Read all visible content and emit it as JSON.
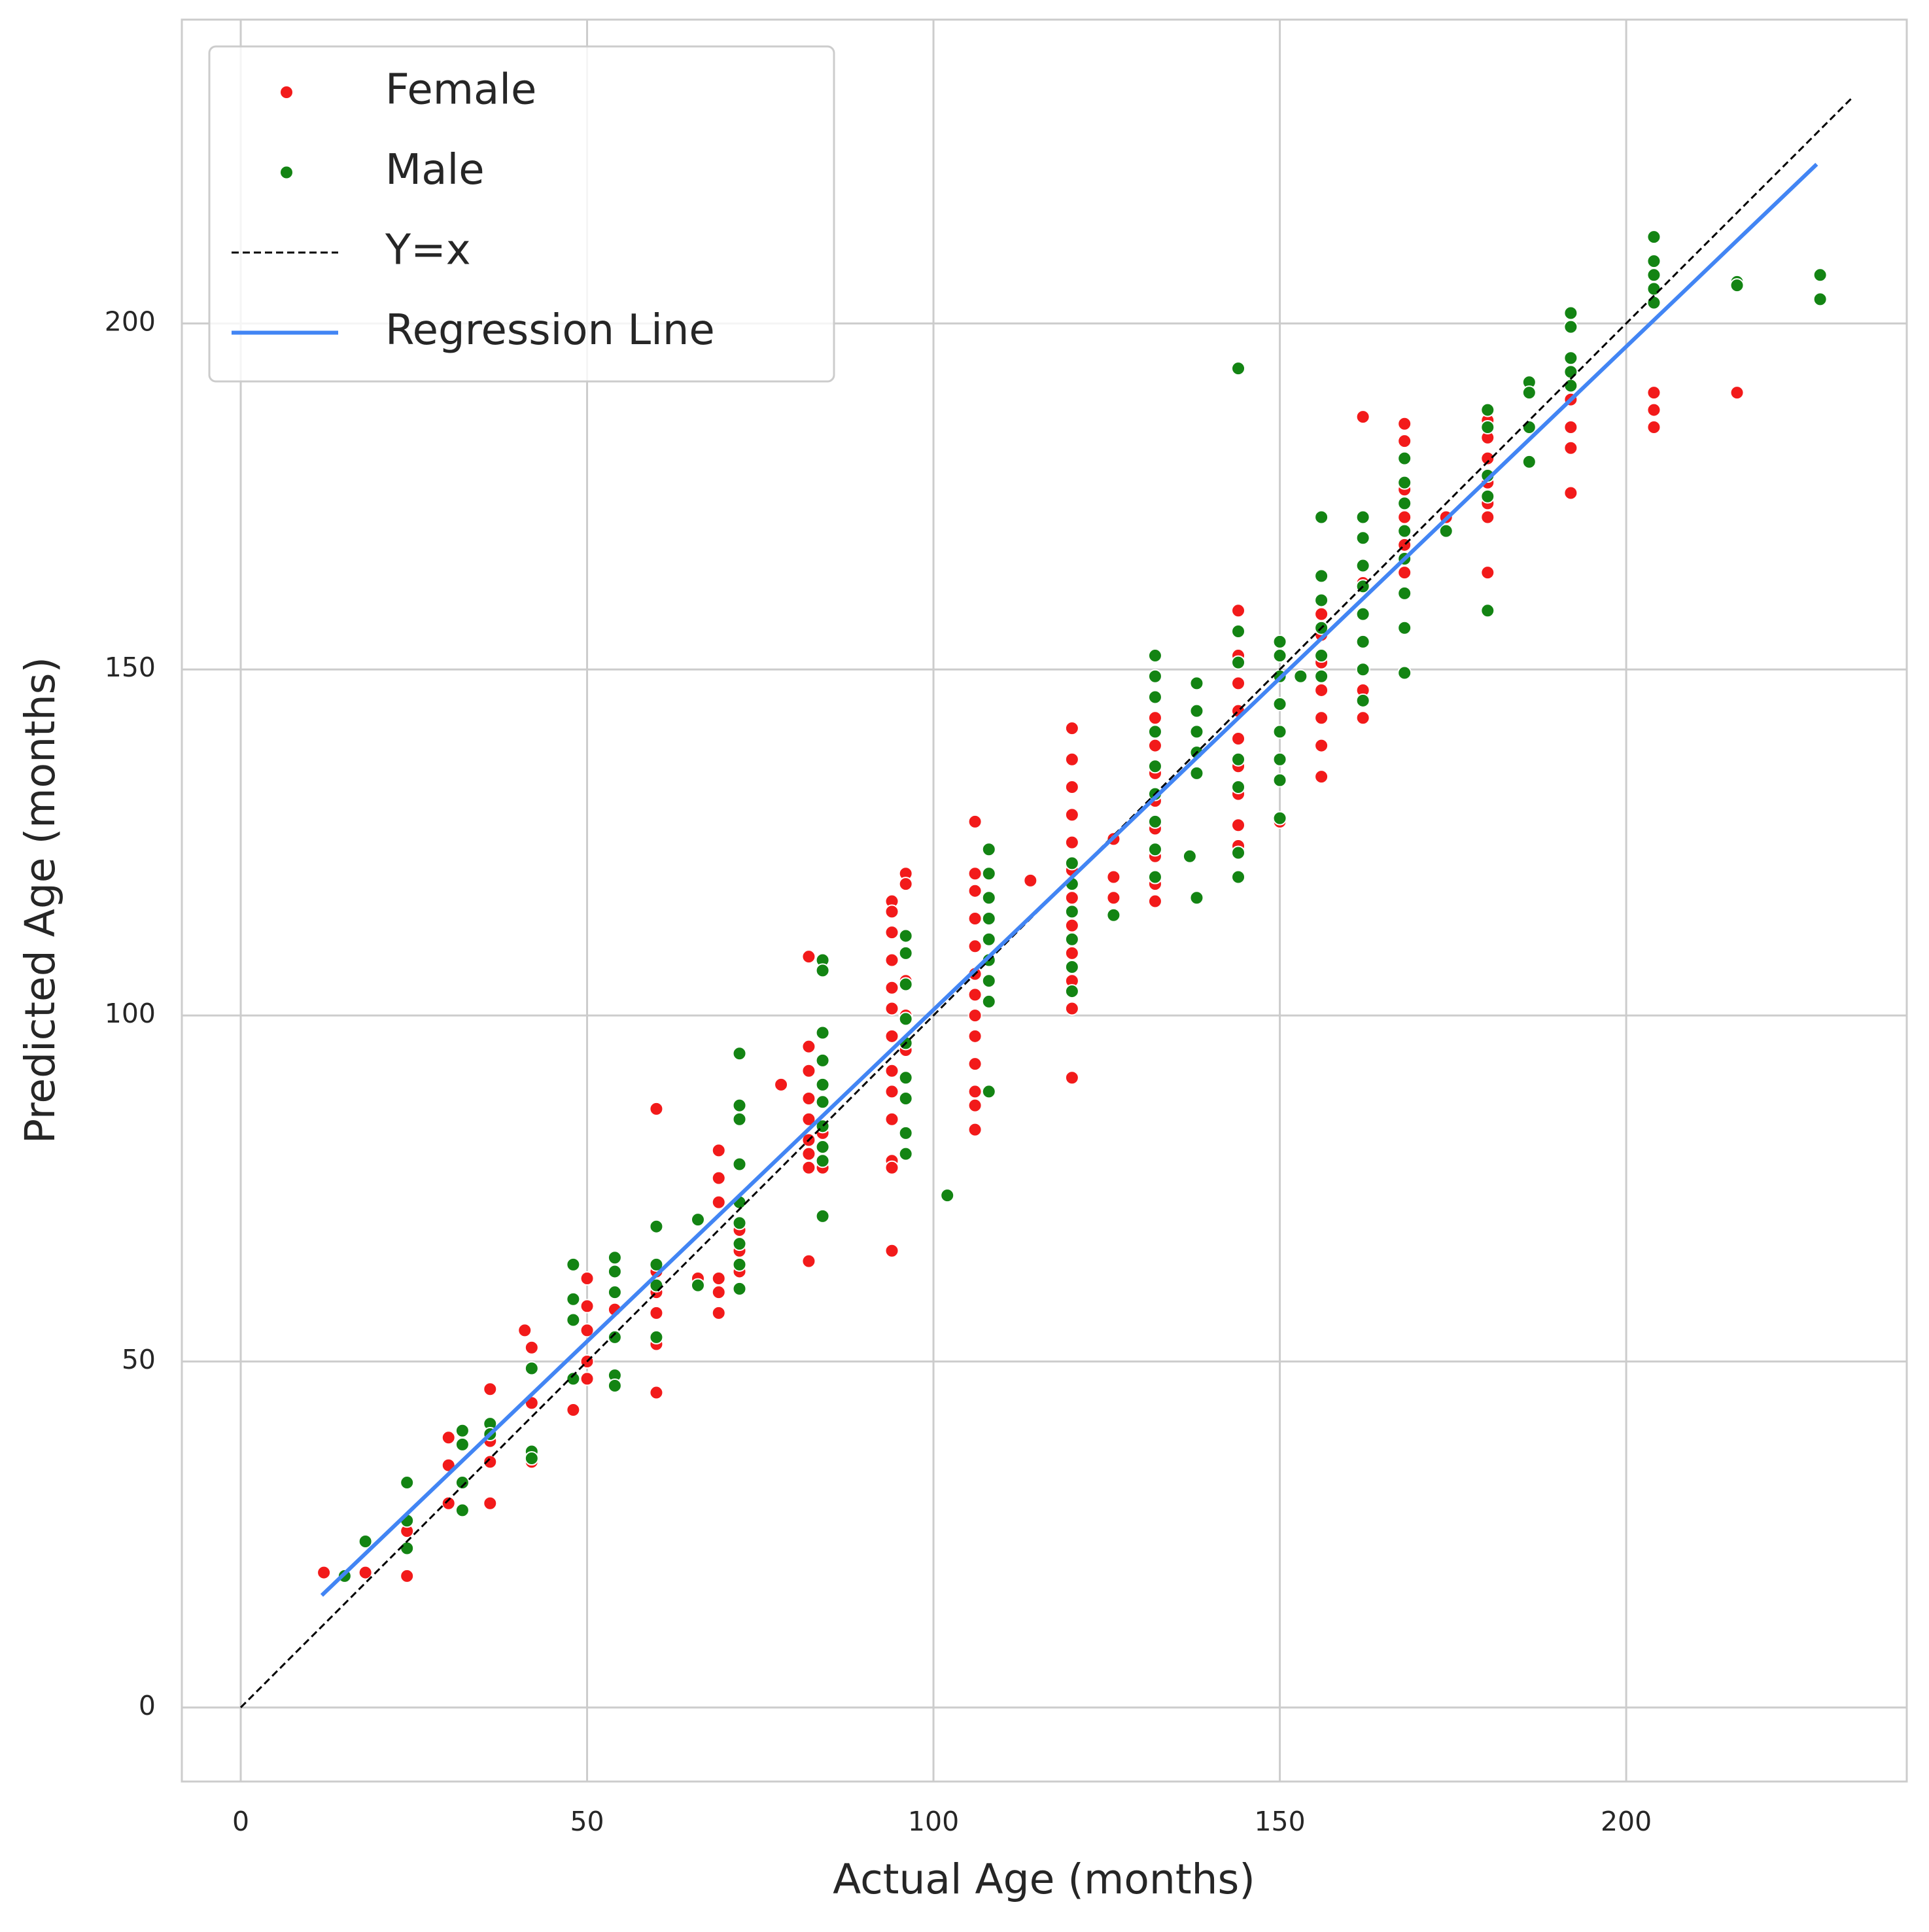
{
  "chart_data": {
    "type": "scatter",
    "xlabel": "Actual Age (months)",
    "ylabel": "Predicted Age (months)",
    "xlim": [
      -8.5,
      240.5
    ],
    "ylim": [
      -10.7,
      243.9
    ],
    "xticks": [
      0,
      50,
      100,
      150,
      200
    ],
    "yticks": [
      0,
      50,
      100,
      150,
      200
    ],
    "grid": true,
    "legend": "upper left",
    "series": [
      {
        "name": "Female",
        "color": "#f21a1a",
        "mode": "markers",
        "x": [
          12,
          18,
          24,
          24,
          30,
          30,
          30,
          36,
          36,
          36,
          36,
          41,
          42,
          42,
          42,
          48,
          50,
          50,
          50,
          50,
          50,
          54,
          60,
          60,
          60,
          60,
          60,
          60,
          66,
          69,
          69,
          69,
          69,
          69,
          69,
          72,
          72,
          72,
          72,
          78,
          82,
          82,
          82,
          82,
          82,
          82,
          82,
          82,
          82,
          84,
          84,
          94,
          94,
          94,
          94,
          94,
          94,
          94,
          94,
          94,
          94,
          94,
          94,
          94,
          96,
          96,
          96,
          96,
          96,
          96,
          106,
          106,
          106,
          106,
          106,
          106,
          106,
          106,
          106,
          106,
          106,
          106,
          106,
          114,
          120,
          120,
          120,
          120,
          120,
          120,
          120,
          120,
          120,
          120,
          120,
          120,
          126,
          126,
          126,
          132,
          132,
          132,
          132,
          132,
          132,
          132,
          132,
          132,
          144,
          144,
          144,
          144,
          144,
          144,
          144,
          144,
          144,
          144,
          150,
          156,
          156,
          156,
          156,
          156,
          156,
          156,
          162,
          162,
          162,
          162,
          162,
          168,
          168,
          168,
          168,
          168,
          168,
          174,
          180,
          180,
          180,
          180,
          180,
          180,
          180,
          192,
          192,
          192,
          192,
          204,
          204,
          204,
          216
        ],
        "y": [
          19.5,
          19.5,
          19,
          25.5,
          39,
          35,
          29.5,
          46,
          38.5,
          35.5,
          29.5,
          54.5,
          52,
          44,
          35.5,
          43,
          62,
          58,
          54.5,
          50,
          47.5,
          57.5,
          86.5,
          63,
          60,
          57,
          52.5,
          45.5,
          62,
          80.5,
          76.5,
          73,
          62,
          60,
          57,
          73,
          69,
          66,
          63,
          90,
          108.5,
          95.5,
          92,
          88,
          85,
          82,
          80,
          78,
          64.5,
          78,
          83,
          116.5,
          115,
          112,
          108,
          104,
          101,
          97,
          92,
          89,
          85,
          79,
          78,
          66,
          120.5,
          119,
          105,
          100,
          95,
          91,
          128,
          120.5,
          118,
          114,
          110,
          106,
          103,
          100,
          97,
          93,
          89,
          87,
          83.5,
          119.5,
          141.5,
          137,
          133,
          129,
          125,
          121,
          117,
          113,
          109,
          105,
          101,
          91,
          125.5,
          120,
          117,
          146,
          143,
          139,
          135,
          131,
          127,
          123,
          119,
          116.5,
          158.5,
          155.5,
          152,
          148,
          144,
          140,
          136,
          132,
          127.5,
          124.5,
          128,
          158,
          155,
          151,
          147,
          143,
          139,
          134.5,
          186.5,
          162.5,
          158,
          147,
          143,
          185.5,
          183,
          176,
          172,
          168,
          164,
          172,
          186,
          183.5,
          180.5,
          177,
          174,
          172,
          164,
          189,
          185,
          182,
          175.5,
          190,
          187.5,
          185,
          190
        ]
      },
      {
        "name": "Male",
        "color": "#138413",
        "mode": "markers",
        "x": [
          15,
          18,
          24,
          24,
          24,
          32,
          32,
          32,
          32,
          36,
          36,
          42,
          42,
          42,
          48,
          48,
          48,
          48,
          54,
          54,
          54,
          54,
          54,
          54,
          60,
          60,
          60,
          60,
          66,
          66,
          72,
          72,
          72,
          72,
          72,
          72,
          72,
          72,
          72,
          84,
          84,
          84,
          84,
          84,
          84,
          84,
          84,
          84,
          84,
          96,
          96,
          96,
          96,
          96,
          96,
          96,
          96,
          96,
          102,
          108,
          108,
          108,
          108,
          108,
          108,
          108,
          108,
          108,
          120,
          120,
          120,
          120,
          120,
          120,
          126,
          132,
          132,
          132,
          132,
          132,
          132,
          132,
          132,
          132,
          137,
          138,
          138,
          138,
          138,
          138,
          138,
          144,
          144,
          144,
          144,
          144,
          144,
          144,
          150,
          150,
          150,
          150,
          150,
          150,
          150,
          150,
          153,
          156,
          156,
          156,
          156,
          156,
          156,
          162,
          162,
          162,
          162,
          162,
          162,
          162,
          162,
          168,
          168,
          168,
          168,
          168,
          168,
          168,
          168,
          174,
          180,
          180,
          180,
          180,
          180,
          186,
          186,
          186,
          186,
          192,
          192,
          192,
          192,
          192,
          204,
          204,
          204,
          204,
          204,
          216,
          216,
          228,
          228
        ],
        "y": [
          19,
          24,
          32.5,
          27,
          23,
          40,
          38,
          32.5,
          28.5,
          41,
          39.5,
          49,
          37,
          36,
          64,
          59,
          56,
          47.5,
          65,
          63,
          60,
          53.5,
          48,
          46.5,
          69.5,
          64,
          61,
          53.5,
          70.5,
          61,
          94.5,
          87,
          85,
          78.5,
          73,
          70,
          67,
          64,
          60.5,
          108,
          106.5,
          97.5,
          93.5,
          90,
          87.5,
          84,
          81,
          79,
          71,
          111.5,
          109,
          104.5,
          99.5,
          96,
          91,
          88,
          83,
          80,
          74,
          124,
          120.5,
          117,
          114,
          111,
          108,
          105,
          102,
          89,
          122,
          119,
          115,
          111,
          107,
          103.5,
          114.5,
          152,
          149,
          146,
          141,
          136,
          132,
          128,
          124,
          120,
          123,
          148,
          144,
          141,
          138,
          135,
          117,
          193.5,
          155.5,
          151,
          137,
          133,
          123.5,
          120,
          154,
          152,
          149,
          145,
          141,
          137,
          134,
          128.5,
          149,
          172,
          163.5,
          160,
          156,
          152,
          149,
          172,
          169,
          165,
          162,
          158,
          154,
          150,
          145.5,
          180.5,
          177,
          174,
          170,
          166,
          161,
          156,
          149.5,
          170,
          187.5,
          185,
          178,
          175,
          158.5,
          191.5,
          190,
          185,
          180,
          201.5,
          199.5,
          195,
          193,
          191,
          212.5,
          209,
          207,
          205,
          203,
          206,
          205.5,
          207,
          203.5
        ]
      },
      {
        "name": "Y=x",
        "color": "#000000",
        "mode": "line",
        "dash": true,
        "x": [
          0,
          232.5
        ],
        "y": [
          0,
          232.5
        ]
      },
      {
        "name": "Regression Line",
        "color": "#4285f4",
        "mode": "line",
        "dash": false,
        "x": [
          11.7,
          227.5
        ],
        "y": [
          16.2,
          223
        ]
      }
    ]
  }
}
